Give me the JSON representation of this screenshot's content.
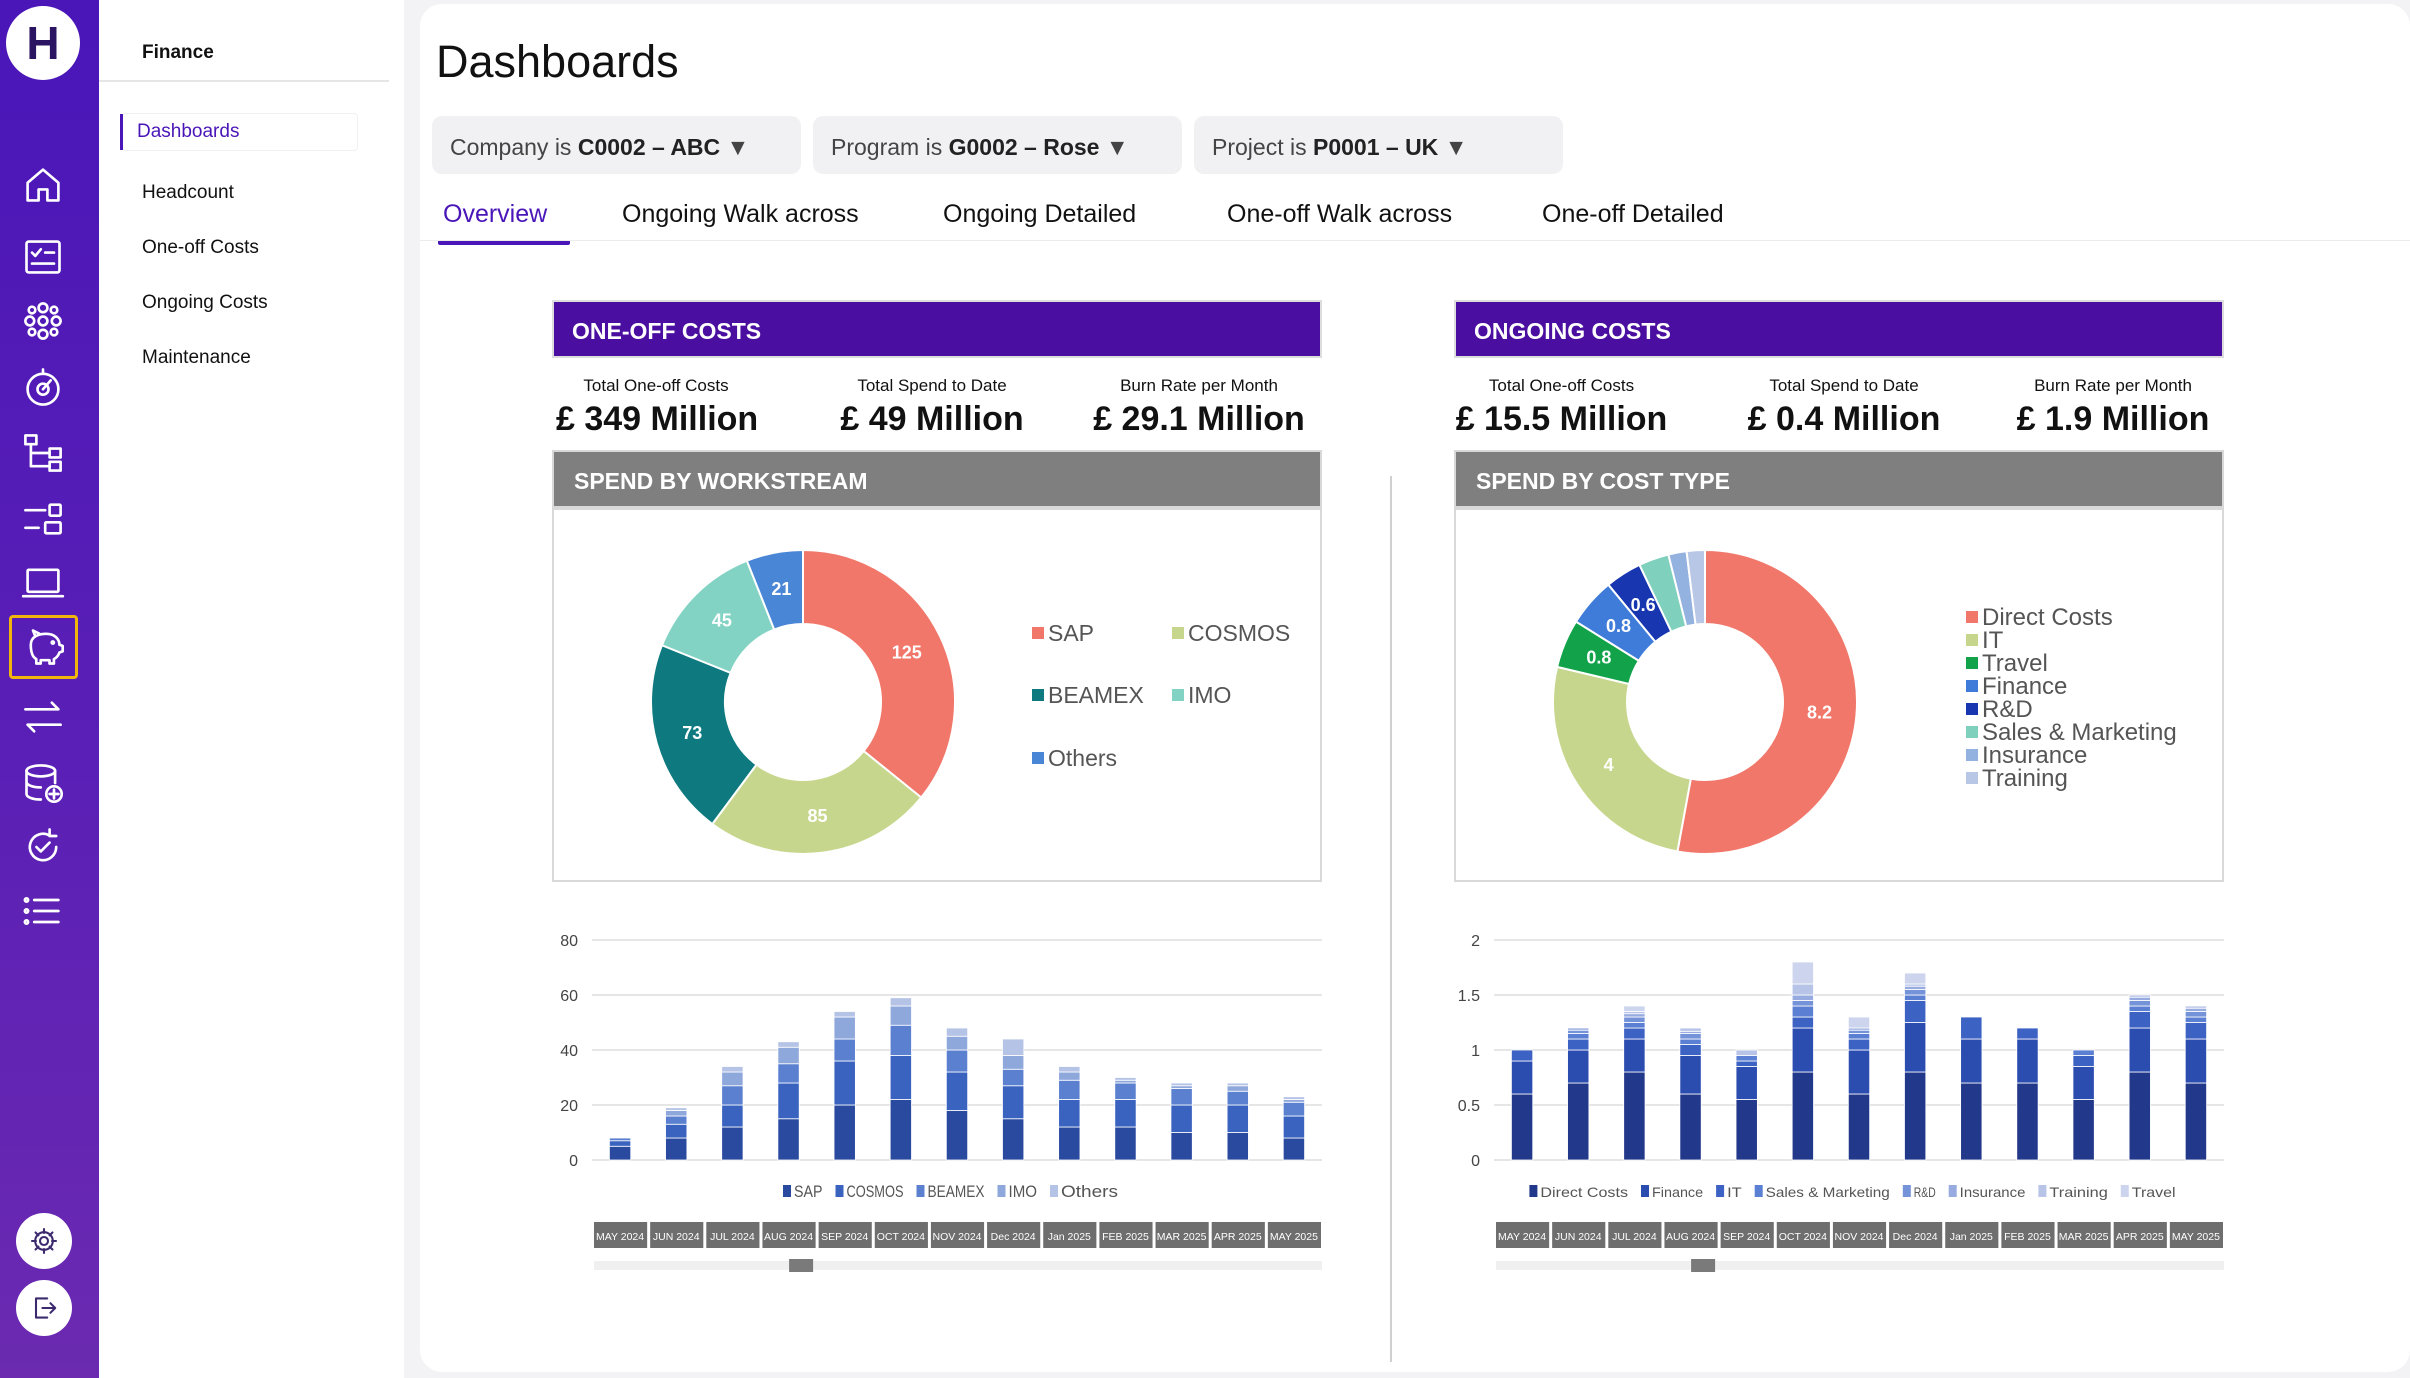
{
  "app": {
    "logo_letter": "H"
  },
  "rail": {
    "icons": [
      "home-icon",
      "checklist-icon",
      "network-icon",
      "gauge-icon",
      "hierarchy-icon",
      "filters-icon",
      "laptop-icon",
      "piggy-bank-icon",
      "transfer-icon",
      "database-add-icon",
      "refresh-check-icon",
      "list-icon"
    ],
    "active": "piggy-bank-icon",
    "bottom": [
      "settings-icon",
      "logout-icon"
    ]
  },
  "subnav": {
    "title": "Finance",
    "items": [
      "Dashboards",
      "Headcount",
      "One-off Costs",
      "Ongoing Costs",
      "Maintenance"
    ],
    "active": "Dashboards"
  },
  "page": {
    "title": "Dashboards"
  },
  "filters": [
    {
      "prefix": "Company is ",
      "value": "C0002 – ABC",
      "arrow": "▼"
    },
    {
      "prefix": "Program is ",
      "value": "G0002 – Rose",
      "arrow": "▼"
    },
    {
      "prefix": "Project is ",
      "value": "P0001 – UK",
      "arrow": "▼"
    }
  ],
  "tabs": [
    "Overview",
    "Ongoing Walk across",
    "Ongoing Detailed",
    "One-off Walk across",
    "One-off Detailed"
  ],
  "active_tab": "Overview",
  "colors": {
    "brand": "#4a16b8",
    "header": "#4a0fa0",
    "subheader": "#7f7f7f",
    "accent": "#f2b50a"
  },
  "panels": {
    "oneoff": {
      "header": "ONE-OFF COSTS",
      "kpis": [
        {
          "label": "Total One-off Costs",
          "value": "£ 349 Million"
        },
        {
          "label": "Total Spend to Date",
          "value": "£ 49 Million"
        },
        {
          "label": "Burn Rate per Month",
          "value": "£ 29.1 Million"
        }
      ],
      "sub_header": "SPEND BY WORKSTREAM"
    },
    "ongoing": {
      "header": "ONGOING COSTS",
      "kpis": [
        {
          "label": "Total One-off Costs",
          "value": "£ 15.5 Million"
        },
        {
          "label": "Total Spend to Date",
          "value": "£ 0.4 Million"
        },
        {
          "label": "Burn Rate per Month",
          "value": "£ 1.9 Million"
        }
      ],
      "sub_header": "SPEND BY COST TYPE"
    }
  },
  "chart_data": [
    {
      "type": "pie",
      "donut": true,
      "categories": [
        "SAP",
        "COSMOS",
        "BEAMEX",
        "IMO",
        "Others"
      ],
      "values": [
        125,
        85,
        73,
        45,
        21
      ],
      "colors": [
        "#f1776a",
        "#c6d78d",
        "#0e7a80",
        "#82d3c4",
        "#4a86d6"
      ],
      "legend_position": "right"
    },
    {
      "type": "pie",
      "donut": true,
      "categories": [
        "Direct Costs",
        "IT",
        "Travel",
        "Finance",
        "R&D",
        "Sales & Marketing",
        "Insurance",
        "Training"
      ],
      "values": [
        8.2,
        4,
        0.8,
        0.8,
        0.6,
        0.5,
        0.3,
        0.3
      ],
      "data_labels": [
        "8.2",
        "4",
        "0.8",
        "0.8",
        "0.6",
        "",
        "",
        ""
      ],
      "colors": [
        "#f1776a",
        "#c6d78d",
        "#12a34a",
        "#3f7bd8",
        "#1736b0",
        "#7fd0bd",
        "#94b2e0",
        "#b8c7e6"
      ],
      "legend_position": "right"
    },
    {
      "type": "bar",
      "stacked": true,
      "categories": [
        "MAY 2024",
        "JUN 2024",
        "JUL 2024",
        "AUG 2024",
        "SEP 2024",
        "OCT 2024",
        "NOV 2024",
        "Dec 2024",
        "Jan 2025",
        "FEB 2025",
        "MAR 2025",
        "APR 2025",
        "MAY 2025"
      ],
      "series": [
        {
          "name": "SAP",
          "values": [
            5,
            8,
            12,
            15,
            20,
            22,
            18,
            15,
            12,
            12,
            10,
            10,
            8
          ],
          "color": "#2a4aa0"
        },
        {
          "name": "COSMOS",
          "values": [
            2,
            5,
            8,
            13,
            16,
            16,
            14,
            12,
            10,
            10,
            10,
            10,
            8
          ],
          "color": "#3a63c0"
        },
        {
          "name": "BEAMEX",
          "values": [
            1,
            3,
            7,
            7,
            8,
            11,
            8,
            6,
            7,
            6,
            6,
            5,
            5
          ],
          "color": "#5b80d0"
        },
        {
          "name": "IMO",
          "values": [
            0,
            2,
            5,
            6,
            8,
            7,
            5,
            5,
            3,
            1,
            1,
            2,
            1
          ],
          "color": "#8fa8dc"
        },
        {
          "name": "Others",
          "values": [
            0,
            1,
            2,
            2,
            2,
            3,
            3,
            6,
            2,
            1,
            1,
            1,
            1
          ],
          "color": "#b5c3e6"
        }
      ],
      "ylim": [
        0,
        80
      ],
      "yticks": [
        0,
        20,
        40,
        60,
        80
      ],
      "grid": true,
      "legend_position": "bottom"
    },
    {
      "type": "bar",
      "stacked": true,
      "categories": [
        "MAY 2024",
        "JUN 2024",
        "JUL 2024",
        "AUG 2024",
        "SEP 2024",
        "OCT 2024",
        "NOV 2024",
        "Dec 2024",
        "Jan 2025",
        "FEB 2025",
        "MAR 2025",
        "APR 2025",
        "MAY 2025"
      ],
      "series": [
        {
          "name": "Direct Costs",
          "values": [
            0.6,
            0.7,
            0.8,
            0.6,
            0.55,
            0.8,
            0.6,
            0.8,
            0.7,
            0.7,
            0.55,
            0.8,
            0.7
          ],
          "color": "#22388a"
        },
        {
          "name": "Finance",
          "values": [
            0.3,
            0.3,
            0.3,
            0.35,
            0.3,
            0.4,
            0.4,
            0.45,
            0.4,
            0.4,
            0.3,
            0.4,
            0.4
          ],
          "color": "#2c4db0"
        },
        {
          "name": "IT",
          "values": [
            0.1,
            0.1,
            0.1,
            0.1,
            0.05,
            0.1,
            0.1,
            0.2,
            0.2,
            0.1,
            0.1,
            0.15,
            0.15
          ],
          "color": "#3c62c4"
        },
        {
          "name": "Sales & Marketing",
          "values": [
            0,
            0.05,
            0.05,
            0.05,
            0.05,
            0.1,
            0.05,
            0.05,
            0,
            0,
            0.05,
            0.05,
            0.05
          ],
          "color": "#5b7fd3"
        },
        {
          "name": "R&D",
          "values": [
            0,
            0.03,
            0.05,
            0.05,
            0,
            0.05,
            0.03,
            0.05,
            0,
            0,
            0,
            0.05,
            0.05
          ],
          "color": "#7593d8"
        },
        {
          "name": "Insurance",
          "values": [
            0,
            0.02,
            0.03,
            0.02,
            0,
            0.05,
            0.02,
            0.03,
            0,
            0,
            0,
            0.03,
            0.03
          ],
          "color": "#97abe0"
        },
        {
          "name": "Training",
          "values": [
            0,
            0,
            0.02,
            0.03,
            0.05,
            0.1,
            0,
            0.02,
            0,
            0,
            0,
            0.02,
            0.02
          ],
          "color": "#b7c4e8"
        },
        {
          "name": "Travel",
          "values": [
            0,
            0,
            0.05,
            0,
            0,
            0.2,
            0.1,
            0.1,
            0,
            0,
            0,
            0,
            0
          ],
          "color": "#cdd5ee"
        }
      ],
      "ylim": [
        0,
        2
      ],
      "yticks": [
        "0",
        "0.5",
        "1",
        "1.5",
        "2"
      ],
      "grid": true,
      "legend_position": "bottom"
    }
  ]
}
